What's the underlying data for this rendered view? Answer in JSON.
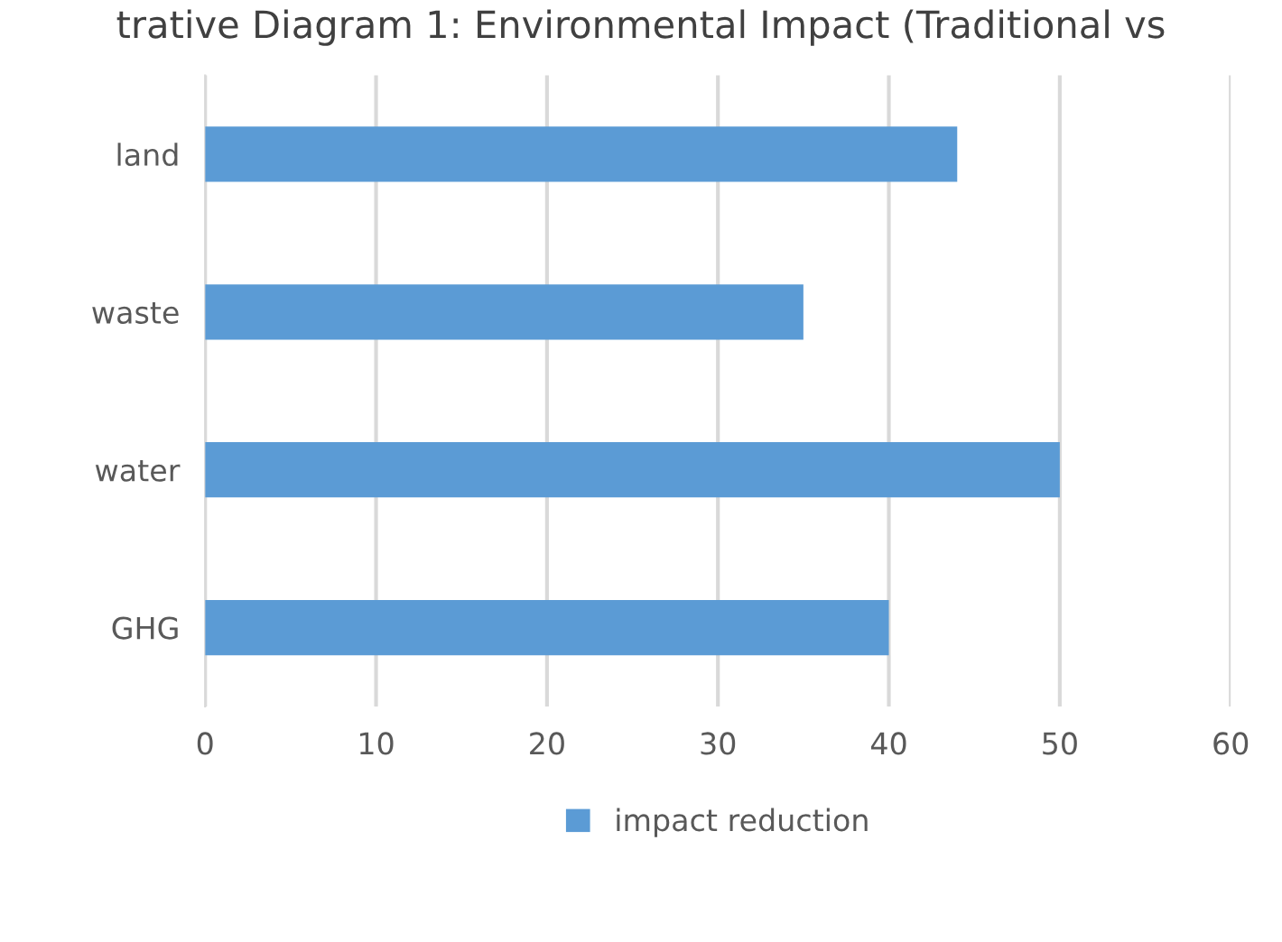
{
  "chart_data": {
    "type": "bar",
    "orientation": "horizontal",
    "title": "trative Diagram 1: Environmental Impact (Traditional vs",
    "categories": [
      "land",
      "waste",
      "water",
      "GHG"
    ],
    "series": [
      {
        "name": "impact reduction",
        "color": "#5b9bd5",
        "values": [
          44,
          35,
          50,
          40
        ]
      }
    ],
    "xlim": [
      0,
      60
    ],
    "xticks": [
      0,
      10,
      20,
      30,
      40,
      50,
      60
    ],
    "grid": "x",
    "legend": "bottom"
  }
}
